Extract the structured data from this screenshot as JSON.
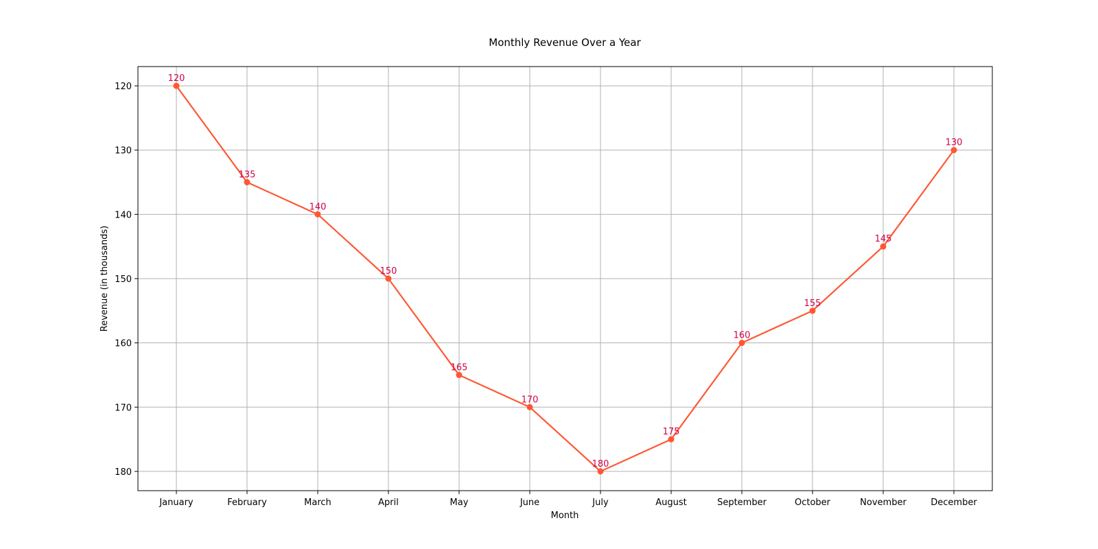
{
  "chart_data": {
    "type": "line",
    "title": "Monthly Revenue Over a Year",
    "xlabel": "Month",
    "ylabel": "Revenue (in thousands)",
    "categories": [
      "January",
      "February",
      "March",
      "April",
      "May",
      "June",
      "July",
      "August",
      "September",
      "October",
      "November",
      "December"
    ],
    "series": [
      {
        "values": [
          120,
          135,
          140,
          150,
          165,
          170,
          180,
          175,
          160,
          155,
          145,
          130
        ]
      }
    ],
    "data_labels": [
      "120",
      "135",
      "140",
      "150",
      "165",
      "170",
      "180",
      "175",
      "160",
      "155",
      "145",
      "130"
    ],
    "yticks": [
      120,
      130,
      140,
      150,
      160,
      170,
      180
    ],
    "ytick_labels": [
      "120",
      "130",
      "140",
      "150",
      "160",
      "170",
      "180"
    ],
    "ylim": [
      117,
      183
    ],
    "y_inverted": true,
    "grid": true,
    "colors": {
      "line": "#ff5733",
      "marker": "#ff5733",
      "data_label": "#d10047",
      "grid": "#b0b0b0"
    }
  }
}
